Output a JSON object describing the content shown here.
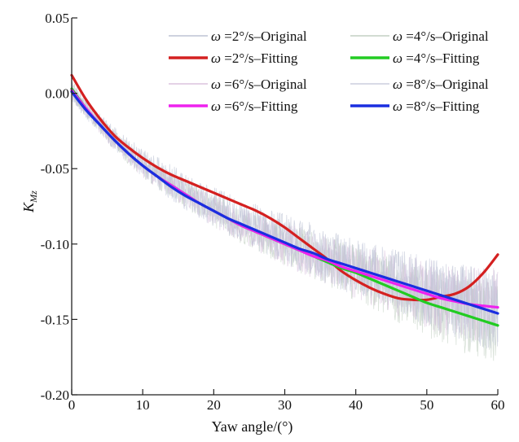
{
  "chart_data": {
    "type": "line",
    "title": "",
    "xlabel": "Yaw angle/(°)",
    "ylabel_main": "K",
    "ylabel_sub": "Mz",
    "xlim": [
      0,
      60
    ],
    "ylim": [
      -0.2,
      0.05
    ],
    "x_ticks": [
      0,
      10,
      20,
      30,
      40,
      50,
      60
    ],
    "x_tick_labels": [
      "0",
      "10",
      "20",
      "30",
      "40",
      "50",
      "60"
    ],
    "y_ticks": [
      -0.2,
      -0.15,
      -0.1,
      -0.05,
      0.0,
      0.05
    ],
    "y_tick_labels": [
      "-0.20",
      "-0.15",
      "-0.10",
      "-0.05",
      "0.00",
      "0.05"
    ],
    "grid": false,
    "legend_position": "top",
    "series": [
      {
        "name": "ω =2°/s–Original",
        "legend_prefix": "ω",
        "legend_rest": " =2°/s–Original",
        "style": "noisy",
        "color": "#b0b8cc",
        "x": [
          0,
          2,
          4,
          6,
          8,
          10,
          12,
          14,
          16,
          18,
          20,
          22,
          24,
          26,
          28,
          30,
          32,
          34,
          36,
          38,
          40,
          42,
          44,
          46,
          48,
          50,
          52,
          54,
          56,
          58,
          60
        ],
        "values": [
          0.0,
          -0.011,
          -0.02,
          -0.029,
          -0.037,
          -0.044,
          -0.05,
          -0.056,
          -0.062,
          -0.067,
          -0.072,
          -0.077,
          -0.081,
          -0.086,
          -0.09,
          -0.094,
          -0.098,
          -0.102,
          -0.106,
          -0.11,
          -0.114,
          -0.118,
          -0.121,
          -0.125,
          -0.128,
          -0.132,
          -0.135,
          -0.138,
          -0.14,
          -0.142,
          -0.143
        ]
      },
      {
        "name": "ω =2°/s–Fitting",
        "legend_prefix": "ω",
        "legend_rest": " =2°/s–Fitting",
        "style": "fit",
        "color": "#d42020",
        "x": [
          0,
          2,
          4,
          6,
          8,
          10,
          12,
          14,
          16,
          18,
          20,
          22,
          24,
          26,
          28,
          30,
          32,
          34,
          36,
          38,
          40,
          42,
          44,
          46,
          48,
          50,
          52,
          54,
          56,
          58,
          60
        ],
        "values": [
          0.012,
          -0.004,
          -0.017,
          -0.028,
          -0.036,
          -0.043,
          -0.049,
          -0.054,
          -0.058,
          -0.062,
          -0.066,
          -0.07,
          -0.074,
          -0.078,
          -0.083,
          -0.089,
          -0.096,
          -0.103,
          -0.11,
          -0.118,
          -0.124,
          -0.129,
          -0.133,
          -0.136,
          -0.137,
          -0.137,
          -0.135,
          -0.133,
          -0.128,
          -0.119,
          -0.107
        ]
      },
      {
        "name": "ω =4°/s–Original",
        "legend_prefix": "ω",
        "legend_rest": " =4°/s–Original",
        "style": "noisy",
        "color": "#b8c8b8",
        "x": [
          0,
          2,
          4,
          6,
          8,
          10,
          12,
          14,
          16,
          18,
          20,
          22,
          24,
          26,
          28,
          30,
          32,
          34,
          36,
          38,
          40,
          42,
          44,
          46,
          48,
          50,
          52,
          54,
          56,
          58,
          60
        ],
        "values": [
          0.003,
          -0.01,
          -0.021,
          -0.031,
          -0.04,
          -0.048,
          -0.055,
          -0.061,
          -0.067,
          -0.073,
          -0.078,
          -0.083,
          -0.088,
          -0.092,
          -0.096,
          -0.1,
          -0.104,
          -0.108,
          -0.112,
          -0.116,
          -0.119,
          -0.123,
          -0.127,
          -0.131,
          -0.135,
          -0.139,
          -0.142,
          -0.145,
          -0.148,
          -0.151,
          -0.154
        ]
      },
      {
        "name": "ω =4°/s–Fitting",
        "legend_prefix": "ω",
        "legend_rest": " =4°/s–Fitting",
        "style": "fit",
        "color": "#22cc22",
        "x": [
          0,
          2,
          4,
          6,
          8,
          10,
          12,
          14,
          16,
          18,
          20,
          22,
          24,
          26,
          28,
          30,
          32,
          34,
          36,
          38,
          40,
          42,
          44,
          46,
          48,
          50,
          52,
          54,
          56,
          58,
          60
        ],
        "values": [
          0.003,
          -0.01,
          -0.021,
          -0.031,
          -0.04,
          -0.048,
          -0.055,
          -0.061,
          -0.067,
          -0.073,
          -0.078,
          -0.083,
          -0.088,
          -0.092,
          -0.096,
          -0.1,
          -0.104,
          -0.108,
          -0.112,
          -0.116,
          -0.119,
          -0.123,
          -0.127,
          -0.131,
          -0.135,
          -0.139,
          -0.142,
          -0.145,
          -0.148,
          -0.151,
          -0.154
        ]
      },
      {
        "name": "ω =6°/s–Original",
        "legend_prefix": "ω",
        "legend_rest": " =6°/s–Original",
        "style": "noisy",
        "color": "#d4b8d8",
        "x": [
          0,
          2,
          4,
          6,
          8,
          10,
          12,
          14,
          16,
          18,
          20,
          22,
          24,
          26,
          28,
          30,
          32,
          34,
          36,
          38,
          40,
          42,
          44,
          46,
          48,
          50,
          52,
          54,
          56,
          58,
          60
        ],
        "values": [
          0.002,
          -0.01,
          -0.021,
          -0.031,
          -0.04,
          -0.048,
          -0.055,
          -0.061,
          -0.067,
          -0.073,
          -0.078,
          -0.083,
          -0.088,
          -0.092,
          -0.096,
          -0.1,
          -0.104,
          -0.108,
          -0.111,
          -0.115,
          -0.118,
          -0.121,
          -0.124,
          -0.127,
          -0.13,
          -0.133,
          -0.136,
          -0.138,
          -0.14,
          -0.141,
          -0.142
        ]
      },
      {
        "name": "ω =6°/s–Fitting",
        "legend_prefix": "ω",
        "legend_rest": " =6°/s–Fitting",
        "style": "fit",
        "color": "#ee22ee",
        "x": [
          0,
          2,
          4,
          6,
          8,
          10,
          12,
          14,
          16,
          18,
          20,
          22,
          24,
          26,
          28,
          30,
          32,
          34,
          36,
          38,
          40,
          42,
          44,
          46,
          48,
          50,
          52,
          54,
          56,
          58,
          60
        ],
        "values": [
          0.002,
          -0.01,
          -0.021,
          -0.031,
          -0.04,
          -0.048,
          -0.055,
          -0.061,
          -0.067,
          -0.073,
          -0.078,
          -0.083,
          -0.088,
          -0.092,
          -0.096,
          -0.1,
          -0.104,
          -0.108,
          -0.111,
          -0.115,
          -0.118,
          -0.121,
          -0.124,
          -0.127,
          -0.13,
          -0.133,
          -0.136,
          -0.138,
          -0.14,
          -0.141,
          -0.142
        ]
      },
      {
        "name": "ω =8°/s–Original",
        "legend_prefix": "ω",
        "legend_rest": " =8°/s–Original",
        "style": "noisy",
        "color": "#c0c4d8",
        "x": [
          0,
          2,
          4,
          6,
          8,
          10,
          12,
          14,
          16,
          18,
          20,
          22,
          24,
          26,
          28,
          30,
          32,
          34,
          36,
          38,
          40,
          42,
          44,
          46,
          48,
          50,
          52,
          54,
          56,
          58,
          60
        ],
        "values": [
          0.001,
          -0.011,
          -0.021,
          -0.031,
          -0.04,
          -0.048,
          -0.055,
          -0.062,
          -0.068,
          -0.073,
          -0.078,
          -0.083,
          -0.087,
          -0.091,
          -0.095,
          -0.099,
          -0.103,
          -0.106,
          -0.11,
          -0.113,
          -0.116,
          -0.119,
          -0.122,
          -0.125,
          -0.128,
          -0.131,
          -0.134,
          -0.137,
          -0.14,
          -0.143,
          -0.146
        ]
      },
      {
        "name": "ω =8°/s–Fitting",
        "legend_prefix": "ω",
        "legend_rest": " =8°/s–Fitting",
        "style": "fit",
        "color": "#1a2ee0",
        "x": [
          0,
          2,
          4,
          6,
          8,
          10,
          12,
          14,
          16,
          18,
          20,
          22,
          24,
          26,
          28,
          30,
          32,
          34,
          36,
          38,
          40,
          42,
          44,
          46,
          48,
          50,
          52,
          54,
          56,
          58,
          60
        ],
        "values": [
          0.001,
          -0.011,
          -0.021,
          -0.031,
          -0.04,
          -0.048,
          -0.055,
          -0.062,
          -0.068,
          -0.073,
          -0.078,
          -0.083,
          -0.087,
          -0.091,
          -0.095,
          -0.099,
          -0.103,
          -0.106,
          -0.11,
          -0.113,
          -0.116,
          -0.119,
          -0.122,
          -0.125,
          -0.128,
          -0.131,
          -0.134,
          -0.137,
          -0.14,
          -0.143,
          -0.146
        ]
      }
    ]
  }
}
